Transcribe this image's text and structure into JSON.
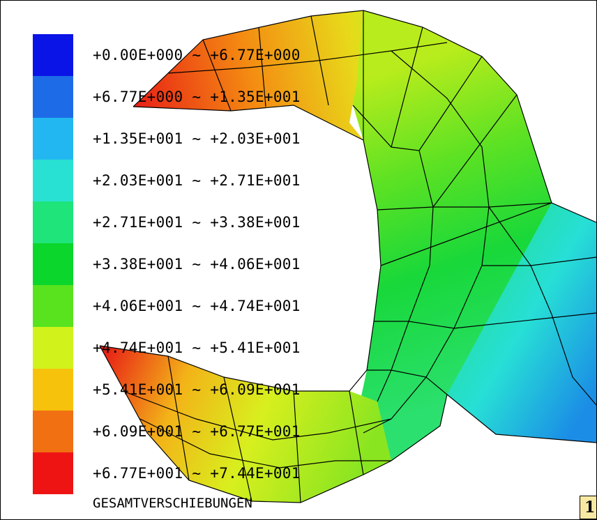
{
  "legend": {
    "items": [
      {
        "label": "+0.00E+000 ~ +6.77E+000",
        "color": "#0a14e6"
      },
      {
        "label": "+6.77E+000 ~ +1.35E+001",
        "color": "#1e6be8"
      },
      {
        "label": "+1.35E+001 ~ +2.03E+001",
        "color": "#22b7f0"
      },
      {
        "label": "+2.03E+001 ~ +2.71E+001",
        "color": "#29e1d2"
      },
      {
        "label": "+2.71E+001 ~ +3.38E+001",
        "color": "#1ee47a"
      },
      {
        "label": "+3.38E+001 ~ +4.06E+001",
        "color": "#0bd62b"
      },
      {
        "label": "+4.06E+001 ~ +4.74E+001",
        "color": "#58e31e"
      },
      {
        "label": "+4.74E+001 ~ +5.41E+001",
        "color": "#d2f21c"
      },
      {
        "label": "+5.41E+001 ~ +6.09E+001",
        "color": "#f7c20c"
      },
      {
        "label": "+6.09E+001 ~ +6.77E+001",
        "color": "#f07012"
      },
      {
        "label": "+6.77E+001 ~ +7.44E+001",
        "color": "#ee1414"
      }
    ]
  },
  "title": "GESAMTVERSCHIEBUNGEN",
  "page_badge": "1"
}
